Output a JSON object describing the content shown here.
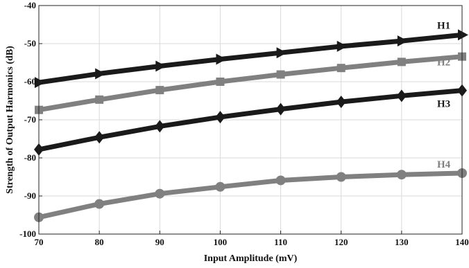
{
  "chart_data": {
    "type": "line",
    "xlabel": "Input Amplitude (mV)",
    "ylabel": "Strength of Output Harmonics (dB)",
    "xlim": [
      70,
      140
    ],
    "ylim": [
      -100,
      -40
    ],
    "xticks": [
      70,
      80,
      90,
      100,
      110,
      120,
      130,
      140
    ],
    "yticks": [
      -40,
      -50,
      -60,
      -70,
      -80,
      -90,
      -100
    ],
    "grid": true,
    "x": [
      70,
      80,
      90,
      100,
      110,
      120,
      130,
      140
    ],
    "series": [
      {
        "name": "H1",
        "marker": "triangle-right",
        "color": "#1a1a1a",
        "values": [
          -60.2,
          -57.9,
          -55.9,
          -54.1,
          -52.4,
          -50.7,
          -49.3,
          -47.7
        ]
      },
      {
        "name": "H2",
        "marker": "square",
        "color": "#808080",
        "values": [
          -67.4,
          -64.7,
          -62.2,
          -60.0,
          -58.1,
          -56.4,
          -54.8,
          -53.4
        ]
      },
      {
        "name": "H3",
        "marker": "diamond",
        "color": "#1a1a1a",
        "values": [
          -77.8,
          -74.6,
          -71.7,
          -69.3,
          -67.2,
          -65.3,
          -63.7,
          -62.3
        ]
      },
      {
        "name": "H4",
        "marker": "circle",
        "color": "#808080",
        "values": [
          -95.6,
          -92.1,
          -89.4,
          -87.6,
          -85.9,
          -85.0,
          -84.4,
          -84.0
        ]
      }
    ]
  }
}
